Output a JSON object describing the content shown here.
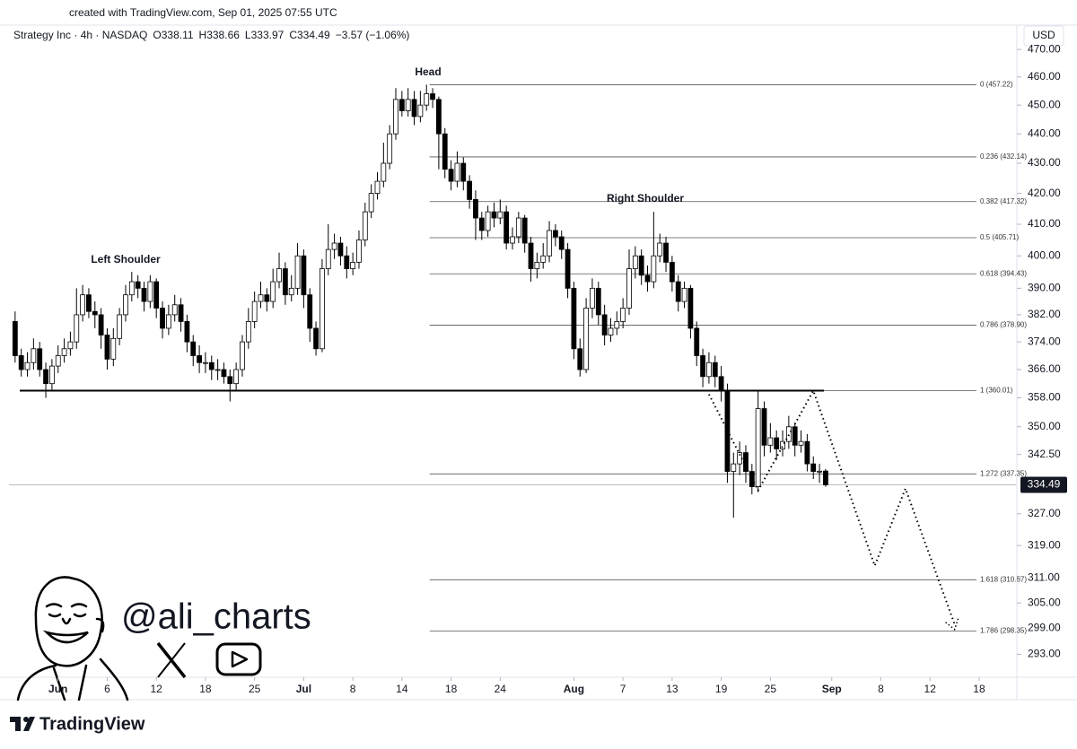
{
  "header": "created with TradingView.com, Sep 01, 2025 07:55 UTC",
  "chart_data": {
    "type": "candlestick",
    "symbol": "Strategy Inc · 4h · NASDAQ",
    "ohlc_labels": [
      "O338.11",
      "H338.66",
      "L333.97",
      "C334.49"
    ],
    "change_label": "−3.57 (−1.06%)",
    "currency": "USD",
    "log_scale": true,
    "up_color": "#ffffff",
    "down_color": "#000000",
    "x": [
      -7,
      -6,
      -5,
      -4,
      -3,
      -2,
      -1,
      0,
      1,
      2,
      3,
      4,
      5,
      6,
      7,
      8,
      9,
      10,
      11,
      12,
      13,
      14,
      15,
      16,
      17,
      18,
      19,
      20,
      21,
      22,
      23,
      24,
      25,
      26,
      27,
      28,
      29,
      30,
      31,
      32,
      33,
      34,
      35,
      36,
      37,
      38,
      39,
      40,
      41,
      42,
      43,
      44,
      45,
      46,
      47,
      48,
      49,
      50,
      51,
      52,
      53,
      54,
      55,
      56,
      57,
      58,
      59,
      60,
      61,
      62,
      63,
      64,
      65,
      66,
      67,
      68,
      69,
      70,
      71,
      72,
      73,
      74,
      75,
      76,
      77,
      78,
      79,
      80,
      81,
      82,
      83,
      84,
      85,
      86,
      87,
      88,
      89,
      90,
      91,
      92,
      93,
      94,
      95,
      96,
      97,
      98,
      99,
      100,
      101,
      102,
      103,
      104,
      105,
      106,
      107,
      108,
      109,
      110,
      111,
      112,
      113,
      114,
      115,
      116,
      117,
      118,
      119,
      120,
      121,
      122,
      123,
      124,
      125
    ],
    "open": [
      380,
      370,
      366,
      368,
      372,
      366,
      362,
      367,
      370,
      372,
      374,
      382,
      388,
      383,
      382,
      376,
      369,
      375,
      382,
      388,
      392,
      390,
      386,
      392,
      384,
      378,
      382,
      385,
      380,
      374,
      370,
      368,
      368,
      366,
      366,
      364,
      362,
      366,
      374,
      380,
      386,
      388,
      386,
      392,
      396,
      388,
      390,
      400,
      388,
      378,
      372,
      396,
      402,
      404,
      400,
      396,
      398,
      405,
      414,
      420,
      424,
      430,
      440,
      452,
      448,
      452,
      446,
      450,
      454,
      452,
      440,
      428,
      424,
      430,
      424,
      418,
      412,
      408,
      414,
      412,
      414,
      404,
      406,
      412,
      404,
      396,
      398,
      400,
      408,
      406,
      402,
      390,
      372,
      366,
      384,
      390,
      382,
      376,
      378,
      380,
      384,
      396,
      400,
      394,
      392,
      400,
      404,
      398,
      392,
      386,
      390,
      378,
      370,
      364,
      368,
      364,
      360,
      338,
      340,
      343,
      338,
      334,
      355,
      345,
      347,
      344,
      346,
      350,
      345,
      346,
      340,
      338,
      338.11
    ],
    "high": [
      383,
      372,
      371,
      375,
      374,
      368,
      369,
      373,
      375,
      377,
      390,
      391,
      390,
      386,
      384,
      378,
      378,
      384,
      391,
      395,
      394,
      392,
      394,
      393,
      386,
      385,
      388,
      387,
      382,
      376,
      373,
      371,
      370,
      369,
      368,
      366,
      368,
      376,
      384,
      389,
      392,
      390,
      396,
      401,
      398,
      394,
      404,
      402,
      390,
      380,
      399,
      410,
      407,
      406,
      403,
      401,
      408,
      417,
      423,
      427,
      437,
      443,
      456,
      455,
      456,
      455,
      455,
      457.22,
      456,
      453,
      442,
      431,
      434,
      432,
      426,
      421,
      414,
      416,
      417,
      418,
      416,
      409,
      414,
      413,
      406,
      401,
      404,
      411,
      410,
      408,
      404,
      392,
      375,
      387,
      393,
      392,
      385,
      381,
      383,
      387,
      402,
      403,
      402,
      397,
      414,
      407,
      406,
      400,
      394,
      392,
      391,
      380,
      372,
      371,
      370,
      367,
      362,
      343,
      346,
      345,
      340,
      360,
      357,
      351,
      349,
      349,
      353,
      351,
      349,
      348,
      342,
      340,
      338.66
    ],
    "low": [
      368,
      364,
      364,
      366,
      364,
      358,
      360,
      365,
      368,
      370,
      372,
      380,
      381,
      378,
      372,
      366,
      367,
      373,
      380,
      386,
      387,
      383,
      384,
      381,
      375,
      376,
      380,
      377,
      371,
      367,
      365,
      365,
      363,
      363,
      362,
      357,
      360,
      364,
      372,
      378,
      384,
      383,
      384,
      390,
      385,
      386,
      388,
      384,
      374,
      370,
      371,
      394,
      399,
      397,
      393,
      394,
      396,
      403,
      412,
      418,
      422,
      428,
      438,
      446,
      446,
      443,
      444,
      448,
      449,
      428,
      425,
      421,
      422,
      421,
      415,
      405,
      405,
      406,
      409,
      410,
      402,
      402,
      404,
      401,
      392,
      393,
      396,
      398,
      403,
      399,
      387,
      369,
      364,
      365,
      381,
      379,
      373,
      374,
      376,
      378,
      382,
      393,
      391,
      389,
      390,
      398,
      395,
      389,
      383,
      384,
      375,
      367,
      361,
      362,
      361,
      357,
      335,
      326,
      337,
      335,
      332,
      333,
      342,
      343,
      341,
      342,
      344,
      342,
      343,
      338,
      336,
      335,
      333.97
    ],
    "close": [
      370,
      366,
      368,
      372,
      366,
      362,
      367,
      370,
      372,
      374,
      382,
      388,
      383,
      382,
      376,
      369,
      375,
      382,
      388,
      392,
      390,
      386,
      392,
      384,
      378,
      382,
      385,
      380,
      374,
      370,
      368,
      368,
      366,
      366,
      364,
      362,
      366,
      374,
      380,
      386,
      388,
      386,
      392,
      396,
      388,
      390,
      400,
      388,
      378,
      372,
      396,
      402,
      404,
      400,
      396,
      398,
      405,
      414,
      420,
      424,
      430,
      440,
      452,
      448,
      452,
      446,
      450,
      454,
      452,
      440,
      428,
      424,
      430,
      424,
      418,
      412,
      408,
      414,
      412,
      414,
      404,
      406,
      412,
      404,
      396,
      398,
      400,
      408,
      406,
      402,
      390,
      372,
      366,
      384,
      390,
      382,
      376,
      378,
      380,
      384,
      396,
      400,
      394,
      392,
      400,
      404,
      398,
      392,
      386,
      390,
      378,
      370,
      364,
      368,
      364,
      360,
      338,
      340,
      343,
      338,
      334,
      355,
      345,
      347,
      344,
      346,
      350,
      345,
      346,
      340,
      338,
      338.06,
      334.49
    ],
    "last_price_label": "334.49",
    "xlim": [
      -8,
      156
    ],
    "xticks": [
      {
        "value": 0,
        "label": "Jun"
      },
      {
        "value": 8,
        "label": "6"
      },
      {
        "value": 16,
        "label": "12"
      },
      {
        "value": 24,
        "label": "18"
      },
      {
        "value": 32,
        "label": "25"
      },
      {
        "value": 40,
        "label": "Jul"
      },
      {
        "value": 48,
        "label": "8"
      },
      {
        "value": 56,
        "label": "14"
      },
      {
        "value": 64,
        "label": "18"
      },
      {
        "value": 72,
        "label": "24"
      },
      {
        "value": 84,
        "label": "Aug"
      },
      {
        "value": 92,
        "label": "7"
      },
      {
        "value": 100,
        "label": "13"
      },
      {
        "value": 108,
        "label": "19"
      },
      {
        "value": 116,
        "label": "25"
      },
      {
        "value": 126,
        "label": "Sep"
      },
      {
        "value": 134,
        "label": "8"
      },
      {
        "value": 142,
        "label": "12"
      },
      {
        "value": 150,
        "label": "18"
      }
    ],
    "ylim": [
      475,
      288
    ],
    "yticks": [
      {
        "value": 470,
        "label": "470.00"
      },
      {
        "value": 460,
        "label": "460.00"
      },
      {
        "value": 450,
        "label": "450.00"
      },
      {
        "value": 440,
        "label": "440.00"
      },
      {
        "value": 430,
        "label": "430.00"
      },
      {
        "value": 420,
        "label": "420.00"
      },
      {
        "value": 410,
        "label": "410.00"
      },
      {
        "value": 400,
        "label": "400.00"
      },
      {
        "value": 390,
        "label": "390.00"
      },
      {
        "value": 382,
        "label": "382.00"
      },
      {
        "value": 374,
        "label": "374.00"
      },
      {
        "value": 366,
        "label": "366.00"
      },
      {
        "value": 358,
        "label": "358.00"
      },
      {
        "value": 350,
        "label": "350.00"
      },
      {
        "value": 342.5,
        "label": "342.50"
      },
      {
        "value": 327,
        "label": "327.00"
      },
      {
        "value": 319,
        "label": "319.00"
      },
      {
        "value": 311,
        "label": "311.00"
      },
      {
        "value": 305,
        "label": "305.00"
      },
      {
        "value": 299,
        "label": "299.00"
      },
      {
        "value": 293,
        "label": "293.00"
      }
    ],
    "fib_levels": [
      {
        "value": 457.22,
        "label": "0 (457.22)"
      },
      {
        "value": 432.14,
        "label": "0.236 (432.14)"
      },
      {
        "value": 417.32,
        "label": "0.382 (417.32)"
      },
      {
        "value": 405.71,
        "label": "0.5 (405.71)"
      },
      {
        "value": 394.43,
        "label": "0.618 (394.43)"
      },
      {
        "value": 378.9,
        "label": "0.786 (378.90)"
      },
      {
        "value": 360.01,
        "label": "1 (360.01)"
      },
      {
        "value": 337.35,
        "label": "1.272 (337.35)"
      },
      {
        "value": 310.57,
        "label": "1.618 (310.57)"
      },
      {
        "value": 298.35,
        "label": "1.786 (298.35)"
      }
    ],
    "annotations": [
      "Left Shoulder",
      "Head",
      "Right Shoulder"
    ],
    "projection": {
      "x": [
        106,
        114,
        123,
        133,
        138,
        146
      ],
      "values": [
        359,
        333,
        360,
        314,
        333.5,
        300
      ]
    }
  },
  "watermark": "@ali_charts",
  "brand": "TradingView"
}
